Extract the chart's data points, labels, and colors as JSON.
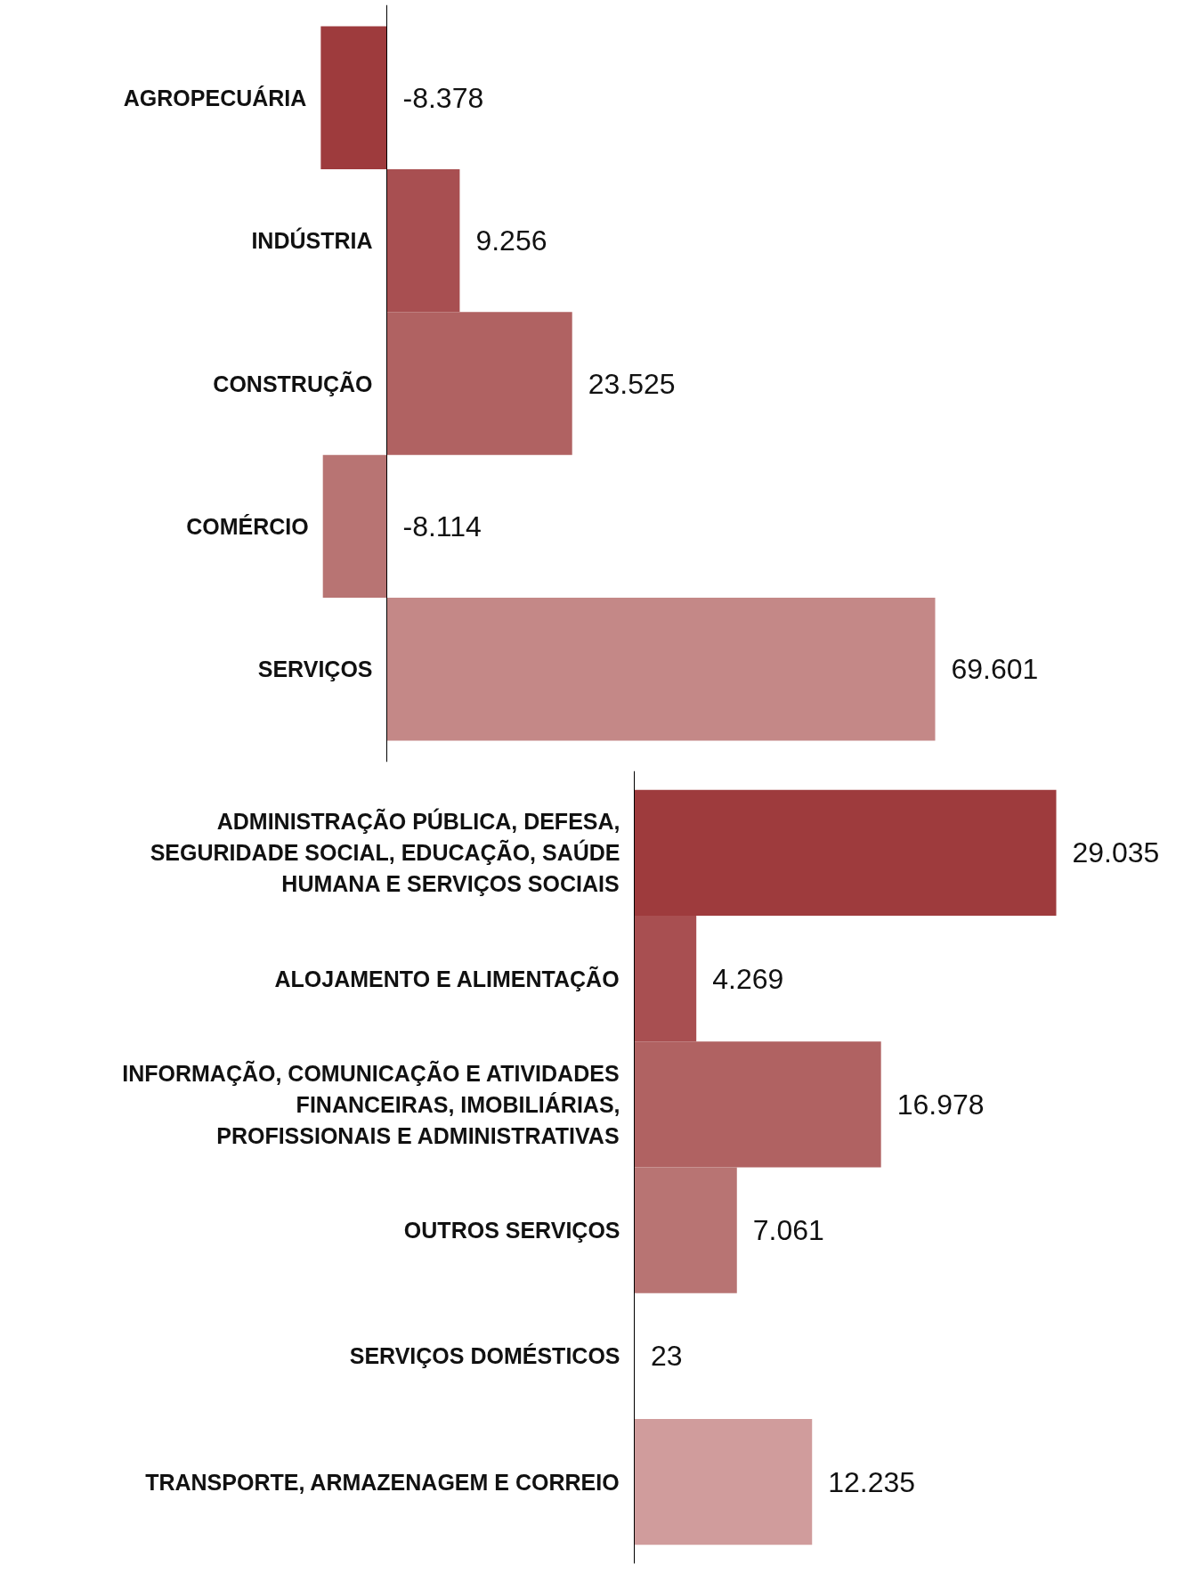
{
  "chart_data": [
    {
      "type": "bar",
      "orientation": "horizontal",
      "categories": [
        "AGROPECUÁRIA",
        "INDÚSTRIA",
        "CONSTRUÇÃO",
        "COMÉRCIO",
        "SERVIÇOS"
      ],
      "values": [
        -8378,
        9256,
        23525,
        -8114,
        69601
      ],
      "colors": [
        "#9e3b3d",
        "#a84f51",
        "#b06262",
        "#b87473",
        "#c48887"
      ],
      "value_labels": [
        "-8.378",
        "9.256",
        "23.525",
        "-8.114",
        "69.601"
      ],
      "grid": false,
      "tick_labels": "y"
    },
    {
      "type": "bar",
      "orientation": "horizontal",
      "categories": [
        "ADMINISTRAÇÃO PÚBLICA, DEFESA, SEGURIDADE SOCIAL, EDUCAÇÃO, SAÚDE HUMANA E SERVIÇOS SOCIAIS",
        "ALOJAMENTO E ALIMENTAÇÃO",
        "INFORMAÇÃO, COMUNICAÇÃO E ATIVIDADES FINANCEIRAS, IMOBILIÁRIAS, PROFISSIONAIS E ADMINISTRATIVAS",
        "OUTROS SERVIÇOS",
        "SERVIÇOS DOMÉSTICOS",
        "TRANSPORTE, ARMAZENAGEM E CORREIO"
      ],
      "values": [
        29035,
        4269,
        16978,
        7061,
        23,
        12235
      ],
      "colors": [
        "#9e3b3d",
        "#a84f51",
        "#b06262",
        "#b87473",
        "#c48887",
        "#d09c9c"
      ],
      "value_labels": [
        "29.035",
        "4.269",
        "16.978",
        "7.061",
        "23",
        "12.235"
      ],
      "grid": false,
      "tick_labels": "y"
    }
  ]
}
